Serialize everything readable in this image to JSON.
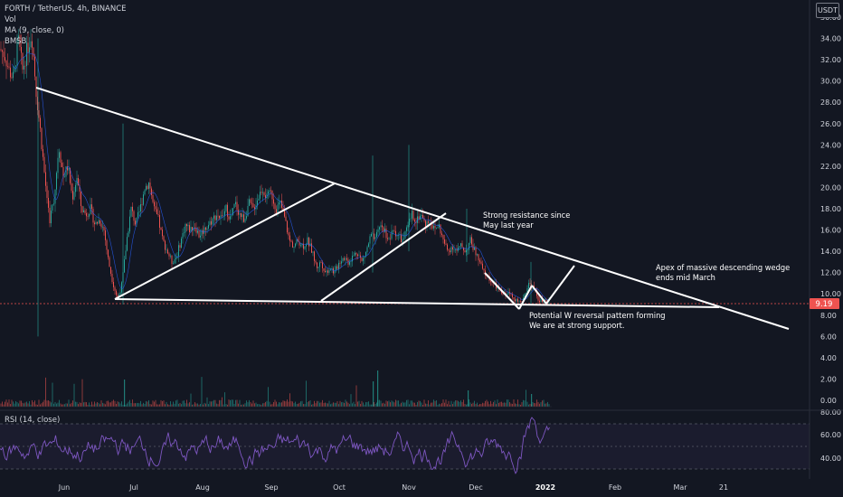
{
  "legend": {
    "symbol": "FORTH / TetherUS, 4h, BINANCE",
    "vol": "Vol",
    "ma": "MA (9, close, 0)",
    "bmsb": "BMSB",
    "rsi": "RSI (14, close)"
  },
  "currency": "USDT",
  "price_badge": "9.19",
  "colors": {
    "background": "#131722",
    "up": "#26a69a",
    "down": "#ef5350",
    "rsi_line": "#7e57c2",
    "annotation": "#ffffff",
    "badge": "#ef5350"
  },
  "chart_data": [
    {
      "type": "candlestick",
      "x_ticks": [
        "Jun",
        "Jul",
        "Aug",
        "Sep",
        "Oct",
        "Nov",
        "Dec",
        "2022",
        "Feb",
        "Mar",
        "21"
      ],
      "y_ticks": [
        "36.00",
        "34.00",
        "32.00",
        "30.00",
        "28.00",
        "26.00",
        "24.00",
        "22.00",
        "20.00",
        "18.00",
        "16.00",
        "14.00",
        "12.00",
        "10.00",
        "8.00",
        "6.00",
        "4.00",
        "2.00",
        "0.00"
      ],
      "y_range": [
        0,
        36
      ],
      "current_price": 9.19,
      "price_path": [
        [
          0,
          33
        ],
        [
          5,
          32.5
        ],
        [
          10,
          31
        ],
        [
          15,
          30.2
        ],
        [
          20,
          34
        ],
        [
          25,
          31
        ],
        [
          30,
          33
        ],
        [
          35,
          34.5
        ],
        [
          40,
          29
        ],
        [
          45,
          25
        ],
        [
          50,
          20.5
        ],
        [
          55,
          17
        ],
        [
          60,
          19
        ],
        [
          65,
          24
        ],
        [
          70,
          21
        ],
        [
          75,
          22
        ],
        [
          80,
          19
        ],
        [
          85,
          21
        ],
        [
          90,
          18
        ],
        [
          95,
          17.5
        ],
        [
          100,
          18
        ],
        [
          105,
          16.5
        ],
        [
          110,
          17
        ],
        [
          115,
          16
        ],
        [
          120,
          13
        ],
        [
          125,
          11
        ],
        [
          130,
          9.5
        ],
        [
          135,
          11
        ],
        [
          140,
          15
        ],
        [
          145,
          18
        ],
        [
          150,
          16.5
        ],
        [
          155,
          18
        ],
        [
          160,
          20
        ],
        [
          165,
          20.5
        ],
        [
          170,
          18
        ],
        [
          175,
          17
        ],
        [
          180,
          15
        ],
        [
          185,
          14
        ],
        [
          190,
          13
        ],
        [
          195,
          13.5
        ],
        [
          200,
          15
        ],
        [
          205,
          16.5
        ],
        [
          210,
          16
        ],
        [
          215,
          16.5
        ],
        [
          220,
          15.5
        ],
        [
          225,
          16
        ],
        [
          230,
          16.5
        ],
        [
          235,
          17
        ],
        [
          240,
          17.5
        ],
        [
          245,
          17
        ],
        [
          250,
          18
        ],
        [
          255,
          17
        ],
        [
          260,
          18.5
        ],
        [
          265,
          17.5
        ],
        [
          270,
          17
        ],
        [
          275,
          18.5
        ],
        [
          280,
          18
        ],
        [
          285,
          19
        ],
        [
          290,
          20
        ],
        [
          295,
          19
        ],
        [
          300,
          19.5
        ],
        [
          305,
          18
        ],
        [
          310,
          18.5
        ],
        [
          315,
          17
        ],
        [
          320,
          15
        ],
        [
          325,
          14.5
        ],
        [
          330,
          15
        ],
        [
          335,
          14.5
        ],
        [
          340,
          15
        ],
        [
          345,
          14
        ],
        [
          350,
          12.5
        ],
        [
          355,
          13
        ],
        [
          360,
          12
        ],
        [
          365,
          12.5
        ],
        [
          370,
          12
        ],
        [
          375,
          13
        ],
        [
          380,
          13.5
        ],
        [
          385,
          13
        ],
        [
          390,
          13.5
        ],
        [
          395,
          14
        ],
        [
          400,
          13
        ],
        [
          405,
          14
        ],
        [
          410,
          15.5
        ],
        [
          415,
          15
        ],
        [
          420,
          16.5
        ],
        [
          425,
          16
        ],
        [
          430,
          15
        ],
        [
          435,
          16
        ],
        [
          440,
          15.5
        ],
        [
          445,
          15
        ],
        [
          450,
          16
        ],
        [
          455,
          17.5
        ],
        [
          460,
          17
        ],
        [
          465,
          17.5
        ],
        [
          470,
          16.5
        ],
        [
          475,
          17
        ],
        [
          480,
          16
        ],
        [
          485,
          16.5
        ],
        [
          490,
          15
        ],
        [
          495,
          14
        ],
        [
          500,
          14.5
        ],
        [
          505,
          14
        ],
        [
          510,
          14.5
        ],
        [
          515,
          14
        ],
        [
          520,
          15
        ],
        [
          525,
          14
        ],
        [
          530,
          13
        ],
        [
          535,
          12
        ],
        [
          540,
          11.5
        ],
        [
          545,
          11
        ],
        [
          550,
          10.5
        ],
        [
          555,
          10
        ],
        [
          560,
          10
        ],
        [
          565,
          10
        ],
        [
          570,
          9.5
        ],
        [
          575,
          9
        ],
        [
          580,
          10
        ],
        [
          585,
          11
        ],
        [
          590,
          10.5
        ],
        [
          595,
          9.5
        ],
        [
          600,
          9.2
        ],
        [
          605,
          9.3
        ],
        [
          608,
          9.19
        ]
      ],
      "ma_line": true,
      "annotations": [
        "Strong resistance since",
        "May last year",
        "Apex of massive descending wedge",
        "ends mid March",
        "Potential W reversal pattern forming",
        "We are at strong support."
      ],
      "trendlines": [
        {
          "from": [
            40,
            97
          ],
          "to": [
            872,
            364
          ]
        },
        {
          "from": [
            127,
            331
          ],
          "to": [
            795,
            340
          ]
        },
        {
          "from": [
            127,
            331
          ],
          "to": [
            370,
            203
          ]
        },
        {
          "from": [
            355,
            333
          ],
          "to": [
            493,
            236
          ]
        },
        {
          "from": [
            536,
            302
          ],
          "to": [
            574,
            342
          ]
        },
        {
          "from": [
            574,
            342
          ],
          "to": [
            588,
            316
          ]
        },
        {
          "from": [
            588,
            316
          ],
          "to": [
            604,
            336
          ]
        },
        {
          "from": [
            604,
            336
          ],
          "to": [
            635,
            294
          ]
        }
      ]
    },
    {
      "type": "bar",
      "name": "Vol",
      "x_ticks": [
        "Jun",
        "Jul",
        "Aug",
        "Sep",
        "Oct",
        "Nov",
        "Dec",
        "2022"
      ]
    },
    {
      "type": "line",
      "name": "RSI (14, close)",
      "y_ticks": [
        "80.00",
        "60.00",
        "40.00"
      ],
      "y_range": [
        30,
        85
      ],
      "band": [
        30,
        70
      ]
    }
  ]
}
